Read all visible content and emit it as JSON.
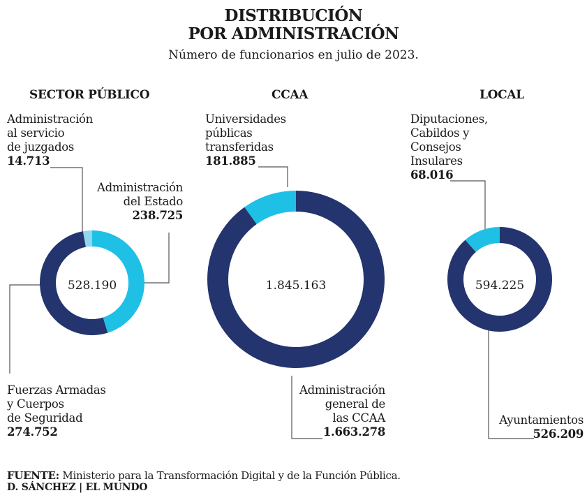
{
  "title": {
    "line1": "DISTRIBUCIÓN",
    "line2": "POR ADMINISTRACIÓN"
  },
  "subtitle": "Número de funcionarios en julio de 2023.",
  "colors": {
    "dark": "#24346e",
    "light": "#1fc0e6",
    "pale": "#8fd6ee"
  },
  "chart_data": [
    {
      "type": "pie",
      "variant": "donut",
      "title": "SECTOR PÚBLICO",
      "total": "528.190",
      "slices": [
        {
          "label": "Administración al servicio de juzgados",
          "value": 14713,
          "display": "14.713",
          "color": "#8fd6ee"
        },
        {
          "label": "Administración del Estado",
          "value": 238725,
          "display": "238.725",
          "color": "#1fc0e6"
        },
        {
          "label": "Fuerzas Armadas y Cuerpos de Seguridad",
          "value": 274752,
          "display": "274.752",
          "color": "#24346e"
        }
      ]
    },
    {
      "type": "pie",
      "variant": "donut",
      "title": "CCAA",
      "total": "1.845.163",
      "slices": [
        {
          "label": "Administración general de las CCAA",
          "value": 1663278,
          "display": "1.663.278",
          "color": "#24346e"
        },
        {
          "label": "Universidades públicas transferidas",
          "value": 181885,
          "display": "181.885",
          "color": "#1fc0e6"
        }
      ]
    },
    {
      "type": "pie",
      "variant": "donut",
      "title": "LOCAL",
      "total": "594.225",
      "slices": [
        {
          "label": "Ayuntamientos",
          "value": 526209,
          "display": "526.209",
          "color": "#24346e"
        },
        {
          "label": "Diputaciones, Cabildos y Consejos Insulares",
          "value": 68016,
          "display": "68.016",
          "color": "#1fc0e6"
        }
      ]
    }
  ],
  "labels": {
    "juzgados": {
      "lines": [
        "Administración",
        "al servicio",
        "de juzgados"
      ],
      "value": "14.713"
    },
    "estado": {
      "lines": [
        "Administración",
        "del Estado"
      ],
      "value": "238.725"
    },
    "fuerzas": {
      "lines": [
        "Fuerzas Armadas",
        "y Cuerpos",
        "de Seguridad"
      ],
      "value": "274.752"
    },
    "universidades": {
      "lines": [
        "Universidades",
        "públicas",
        "transferidas"
      ],
      "value": "181.885"
    },
    "ccaa_general": {
      "lines": [
        "Administración",
        "general de",
        "las CCAA"
      ],
      "value": "1.663.278"
    },
    "diputaciones": {
      "lines": [
        "Diputaciones,",
        "Cabildos y",
        "Consejos",
        "Insulares"
      ],
      "value": "68.016"
    },
    "ayuntamientos": {
      "lines": [
        "Ayuntamientos"
      ],
      "value": "526.209"
    }
  },
  "footer": {
    "source_label": "FUENTE:",
    "source_text": " Ministerio para la Transformación Digital y de la Función Pública.",
    "credit": "D. SÁNCHEZ | EL MUNDO"
  }
}
